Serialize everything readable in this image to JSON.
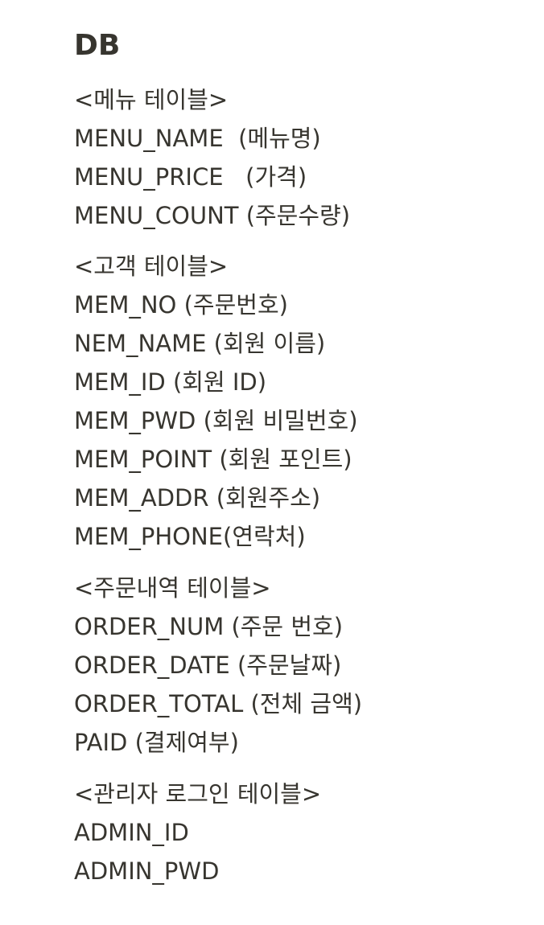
{
  "heading": "DB",
  "sections": [
    {
      "title": "<메뉴 테이블>",
      "fields": [
        "MENU_NAME  (메뉴명)",
        "MENU_PRICE   (가격)",
        "MENU_COUNT (주문수량)"
      ]
    },
    {
      "title": "<고객 테이블>",
      "fields": [
        "MEM_NO (주문번호)",
        "NEM_NAME (회원 이름)",
        "MEM_ID (회원 ID)",
        "MEM_PWD (회원 비밀번호)",
        "MEM_POINT (회원 포인트)",
        "MEM_ADDR (회원주소)",
        "MEM_PHONE(연락처)"
      ]
    },
    {
      "title": "<주문내역 테이블>",
      "fields": [
        "ORDER_NUM (주문 번호)",
        "ORDER_DATE (주문날짜)",
        "ORDER_TOTAL (전체 금액)",
        "PAID (결제여부)"
      ]
    },
    {
      "title": "<관리자 로그인 테이블>",
      "fields": [
        "ADMIN_ID",
        "ADMIN_PWD"
      ]
    }
  ]
}
